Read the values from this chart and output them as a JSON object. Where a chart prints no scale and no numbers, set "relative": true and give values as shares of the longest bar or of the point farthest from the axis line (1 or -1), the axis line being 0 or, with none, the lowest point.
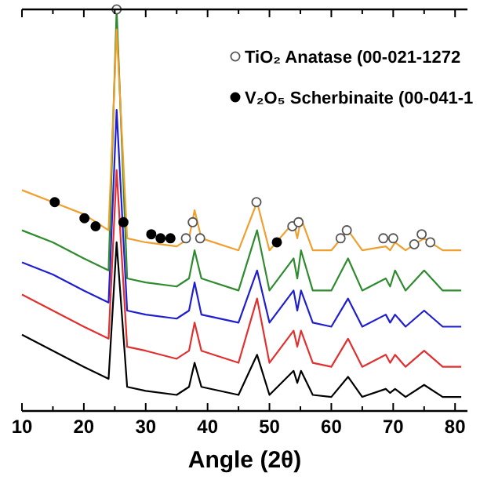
{
  "chart_data": {
    "type": "line",
    "xlabel": "Angle (2θ)",
    "relative": true,
    "xlim": [
      10,
      82
    ],
    "xticks": [
      10,
      {
        "value": 15,
        "label": null
      },
      20,
      {
        "value": 25,
        "label": null
      },
      30,
      {
        "value": 35,
        "label": null
      },
      40,
      {
        "value": 45,
        "label": null
      },
      50,
      {
        "value": 55,
        "label": null
      },
      60,
      {
        "value": 65,
        "label": null
      },
      70,
      {
        "value": 75,
        "label": null
      },
      80
    ],
    "legend": "top right",
    "grid": false,
    "marker": "none",
    "line_style": "solid",
    "x": [
      10,
      15,
      20,
      24,
      25.3,
      27,
      30,
      35,
      37,
      37.9,
      39,
      45,
      48,
      50,
      53.9,
      54.5,
      55.1,
      57,
      60,
      62.7,
      65,
      68.8,
      69.5,
      70.3,
      72,
      75,
      78,
      81
    ],
    "series": [
      {
        "color": "#000000",
        "values": [
          0.19,
          0.15,
          0.11,
          0.08,
          0.42,
          0.06,
          0.05,
          0.04,
          0.06,
          0.12,
          0.06,
          0.04,
          0.14,
          0.04,
          0.1,
          0.07,
          0.1,
          0.04,
          0.035,
          0.085,
          0.035,
          0.055,
          0.045,
          0.055,
          0.035,
          0.065,
          0.035,
          0.035
        ]
      },
      {
        "color": "#e03030",
        "values": [
          0.29,
          0.25,
          0.21,
          0.18,
          0.6,
          0.16,
          0.15,
          0.13,
          0.15,
          0.22,
          0.15,
          0.12,
          0.28,
          0.12,
          0.2,
          0.16,
          0.2,
          0.12,
          0.11,
          0.18,
          0.11,
          0.14,
          0.12,
          0.14,
          0.11,
          0.15,
          0.11,
          0.11
        ]
      },
      {
        "color": "#1f1fd0",
        "values": [
          0.37,
          0.34,
          0.3,
          0.27,
          0.75,
          0.25,
          0.24,
          0.23,
          0.25,
          0.32,
          0.24,
          0.22,
          0.35,
          0.22,
          0.3,
          0.25,
          0.3,
          0.22,
          0.21,
          0.28,
          0.21,
          0.24,
          0.22,
          0.24,
          0.21,
          0.25,
          0.21,
          0.21
        ]
      },
      {
        "color": "#2e8b2e",
        "values": [
          0.45,
          0.42,
          0.38,
          0.35,
          1,
          0.33,
          0.32,
          0.31,
          0.33,
          0.4,
          0.33,
          0.3,
          0.45,
          0.3,
          0.38,
          0.33,
          0.4,
          0.3,
          0.3,
          0.38,
          0.3,
          0.33,
          0.31,
          0.35,
          0.3,
          0.35,
          0.3,
          0.3
        ]
      },
      {
        "color": "#f0a030",
        "values": [
          0.55,
          0.52,
          0.49,
          0.45,
          0.95,
          0.43,
          0.42,
          0.41,
          0.43,
          0.5,
          0.43,
          0.4,
          0.52,
          0.4,
          0.47,
          0.43,
          0.48,
          0.4,
          0.4,
          0.45,
          0.4,
          0.41,
          0.4,
          0.42,
          0.4,
          0.43,
          0.4,
          0.4
        ]
      },
      {
        "type": "scatter",
        "name": "TiO₂ Anatase (00-021-1272",
        "marker": "circle",
        "color": "#ffffff",
        "x": [
          25.3,
          36.5,
          37.6,
          38.8,
          47.9,
          53.7,
          54.7,
          61.5,
          62.5,
          68.4,
          70,
          73.4,
          74.6,
          76
        ],
        "values": [
          1,
          0.43,
          0.47,
          0.43,
          0.52,
          0.46,
          0.47,
          0.43,
          0.45,
          0.43,
          0.43,
          0.415,
          0.44,
          0.42
        ]
      },
      {
        "type": "scatter",
        "name": "V₂O₅ Scherbinaite (00-041-1",
        "marker": "circle",
        "color": "#000000",
        "x": [
          15.3,
          20.1,
          21.9,
          26.4,
          30.9,
          32.4,
          34,
          51.2
        ],
        "values": [
          0.52,
          0.48,
          0.46,
          0.47,
          0.44,
          0.43,
          0.43,
          0.42
        ]
      }
    ]
  }
}
